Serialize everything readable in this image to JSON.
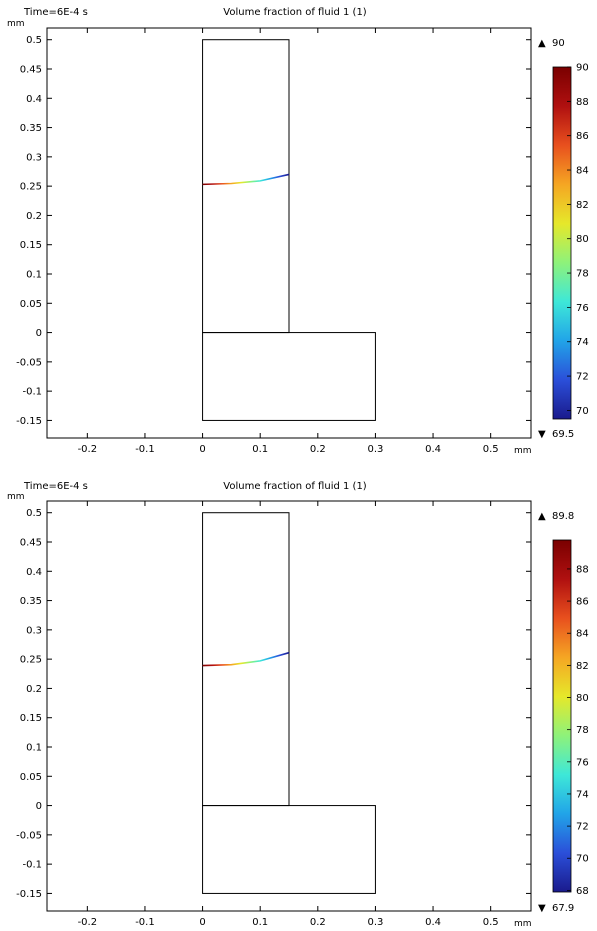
{
  "chart_data": [
    {
      "type": "surface-plot",
      "time_label": "Time=6E-4 s",
      "title": "Volume fraction of fluid 1 (1)",
      "x_unit": "mm",
      "y_unit": "mm",
      "xlim": [
        -0.27,
        0.57
      ],
      "ylim": [
        -0.18,
        0.52
      ],
      "x_ticks": [
        -0.2,
        -0.1,
        0,
        0.1,
        0.2,
        0.3,
        0.4,
        0.5
      ],
      "x_tick_labels": [
        "-0.2",
        "-0.1",
        "0",
        "0.1",
        "0.2",
        "0.3",
        "0.4",
        "0.5"
      ],
      "y_ticks": [
        0.5,
        0.45,
        0.4,
        0.35,
        0.3,
        0.25,
        0.2,
        0.15,
        0.1,
        0.05,
        0,
        -0.05,
        -0.1,
        -0.15
      ],
      "y_tick_labels": [
        "0.5",
        "0.45",
        "0.4",
        "0.35",
        "0.3",
        "0.25",
        "0.2",
        "0.15",
        "0.1",
        "0.05",
        "0",
        "-0.05",
        "-0.1",
        "-0.15"
      ],
      "geometry": {
        "upper_channel": {
          "x": [
            0,
            0.15
          ],
          "y": [
            0,
            0.5
          ]
        },
        "lower_channel": {
          "x": [
            0,
            0.3
          ],
          "y": [
            -0.15,
            0
          ]
        }
      },
      "interface_curve": {
        "x": [
          0,
          0.05,
          0.1,
          0.15
        ],
        "y": [
          0.253,
          0.2545,
          0.259,
          0.27
        ]
      },
      "colorbar": {
        "max_label": "90",
        "min_label": "69.5",
        "range": [
          69.5,
          90
        ],
        "ticks": [
          90,
          88,
          86,
          84,
          82,
          80,
          78,
          76,
          74,
          72,
          70
        ],
        "tick_labels": [
          "90",
          "88",
          "86",
          "84",
          "82",
          "80",
          "78",
          "76",
          "74",
          "72",
          "70"
        ],
        "colormap": "rainbow",
        "colors": [
          "#1a1a8c",
          "#2b4fd9",
          "#21a4e8",
          "#3ee8d8",
          "#8ef27a",
          "#e6e82a",
          "#f5a623",
          "#e8501e",
          "#b01010",
          "#7a0000"
        ]
      }
    },
    {
      "type": "surface-plot",
      "time_label": "Time=6E-4 s",
      "title": "Volume fraction of fluid 1 (1)",
      "x_unit": "mm",
      "y_unit": "mm",
      "xlim": [
        -0.27,
        0.57
      ],
      "ylim": [
        -0.18,
        0.52
      ],
      "x_ticks": [
        -0.2,
        -0.1,
        0,
        0.1,
        0.2,
        0.3,
        0.4,
        0.5
      ],
      "x_tick_labels": [
        "-0.2",
        "-0.1",
        "0",
        "0.1",
        "0.2",
        "0.3",
        "0.4",
        "0.5"
      ],
      "y_ticks": [
        0.5,
        0.45,
        0.4,
        0.35,
        0.3,
        0.25,
        0.2,
        0.15,
        0.1,
        0.05,
        0,
        -0.05,
        -0.1,
        -0.15
      ],
      "y_tick_labels": [
        "0.5",
        "0.45",
        "0.4",
        "0.35",
        "0.3",
        "0.25",
        "0.2",
        "0.15",
        "0.1",
        "0.05",
        "0",
        "-0.05",
        "-0.1",
        "-0.15"
      ],
      "geometry": {
        "upper_channel": {
          "x": [
            0,
            0.15
          ],
          "y": [
            0,
            0.5
          ]
        },
        "lower_channel": {
          "x": [
            0,
            0.3
          ],
          "y": [
            -0.15,
            0
          ]
        }
      },
      "interface_curve": {
        "x": [
          0,
          0.05,
          0.1,
          0.15
        ],
        "y": [
          0.239,
          0.2405,
          0.247,
          0.261
        ]
      },
      "colorbar": {
        "max_label": "89.8",
        "min_label": "67.9",
        "range": [
          67.9,
          89.8
        ],
        "ticks": [
          88,
          86,
          84,
          82,
          80,
          78,
          76,
          74,
          72,
          70,
          68
        ],
        "tick_labels": [
          "88",
          "86",
          "84",
          "82",
          "80",
          "78",
          "76",
          "74",
          "72",
          "70",
          "68"
        ],
        "colormap": "rainbow",
        "colors": [
          "#1a1a8c",
          "#2b4fd9",
          "#21a4e8",
          "#3ee8d8",
          "#8ef27a",
          "#e6e82a",
          "#f5a623",
          "#e8501e",
          "#b01010",
          "#7a0000"
        ]
      }
    }
  ]
}
